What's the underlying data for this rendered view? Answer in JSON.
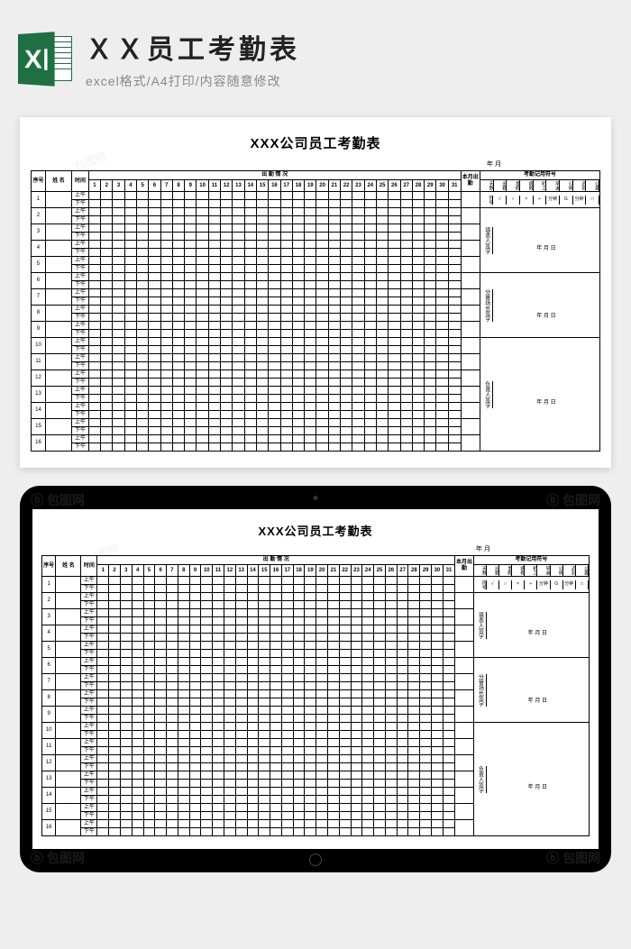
{
  "header": {
    "title": "ＸＸ员工考勤表",
    "subtitle": "excel格式/A4打印/内容随意修改"
  },
  "sheet": {
    "title": "XXX公司员工考勤表",
    "year_month": "年   月",
    "cols": {
      "seq": "序号",
      "name": "姓 名",
      "time": "时间",
      "attendance_header": "出 勤 情 况",
      "month_att": "本月出勤"
    },
    "time_slots": {
      "am": "上午",
      "pm": "下午"
    },
    "days": [
      "1",
      "2",
      "3",
      "4",
      "5",
      "6",
      "7",
      "8",
      "9",
      "10",
      "11",
      "12",
      "13",
      "14",
      "15",
      "16",
      "17",
      "18",
      "19",
      "20",
      "21",
      "22",
      "23",
      "24",
      "25",
      "26",
      "27",
      "28",
      "29",
      "30",
      "31"
    ],
    "row_count": 16,
    "legend": {
      "title": "考勤记用符号",
      "labels": [
        "天数",
        "出勤",
        "事假",
        "病假",
        "旷工",
        "早退",
        "公休",
        "迟到",
        "公差"
      ],
      "sym_label": "符号",
      "symbols": [
        "√",
        "○",
        "×",
        "÷",
        "分钟",
        "G",
        "分钟",
        "□"
      ]
    },
    "signatures": [
      {
        "label": "填表人签字",
        "date": "年  月  日"
      },
      {
        "label": "分管场长签字",
        "date": "年  月  日"
      },
      {
        "label": "负责人签字",
        "date": "年  月  日"
      }
    ]
  },
  "colors": {
    "page_bg": "#eeeeee",
    "excel_green": "#1e6f42",
    "text": "#222222",
    "subtext": "#888888",
    "border": "#000000",
    "tablet": "#000000"
  },
  "watermark": "包图网"
}
